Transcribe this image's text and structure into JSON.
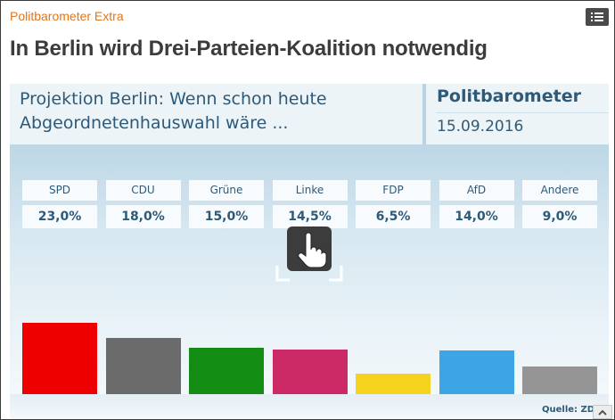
{
  "header": {
    "kicker": "Politbarometer Extra",
    "headline": "In Berlin wird Drei-Parteien-Koalition notwendig",
    "menu_icon": "list-icon"
  },
  "graphic": {
    "projection_line1": "Projektion Berlin: Wenn schon heute",
    "projection_line2": "Abgeordnetenhauswahl wäre ...",
    "brand": "Politbarometer",
    "date": "15.09.2016",
    "source": "Quelle: ZDF",
    "overlay_icon": "hand-pointer-icon"
  },
  "chart_data": {
    "type": "bar",
    "title": "Projektion Berlin: Wenn schon heute Abgeordnetenhauswahl wäre ...",
    "categories": [
      "SPD",
      "CDU",
      "Grüne",
      "Linke",
      "FDP",
      "AfD",
      "Andere"
    ],
    "values": [
      23.0,
      18.0,
      15.0,
      14.5,
      6.5,
      14.0,
      9.0
    ],
    "value_labels": [
      "23,0%",
      "18,0%",
      "15,0%",
      "14,5%",
      "6,5%",
      "14,0%",
      "9,0%"
    ],
    "unit": "%",
    "colors": [
      "#ee0000",
      "#6b6b6b",
      "#128c12",
      "#cc2a66",
      "#f5d21e",
      "#3ca5e6",
      "#959595"
    ],
    "ylim": [
      0,
      23.0
    ],
    "legend": "none",
    "grid": false
  },
  "footer": {
    "scroll_icon": "chevron-up-icon"
  }
}
